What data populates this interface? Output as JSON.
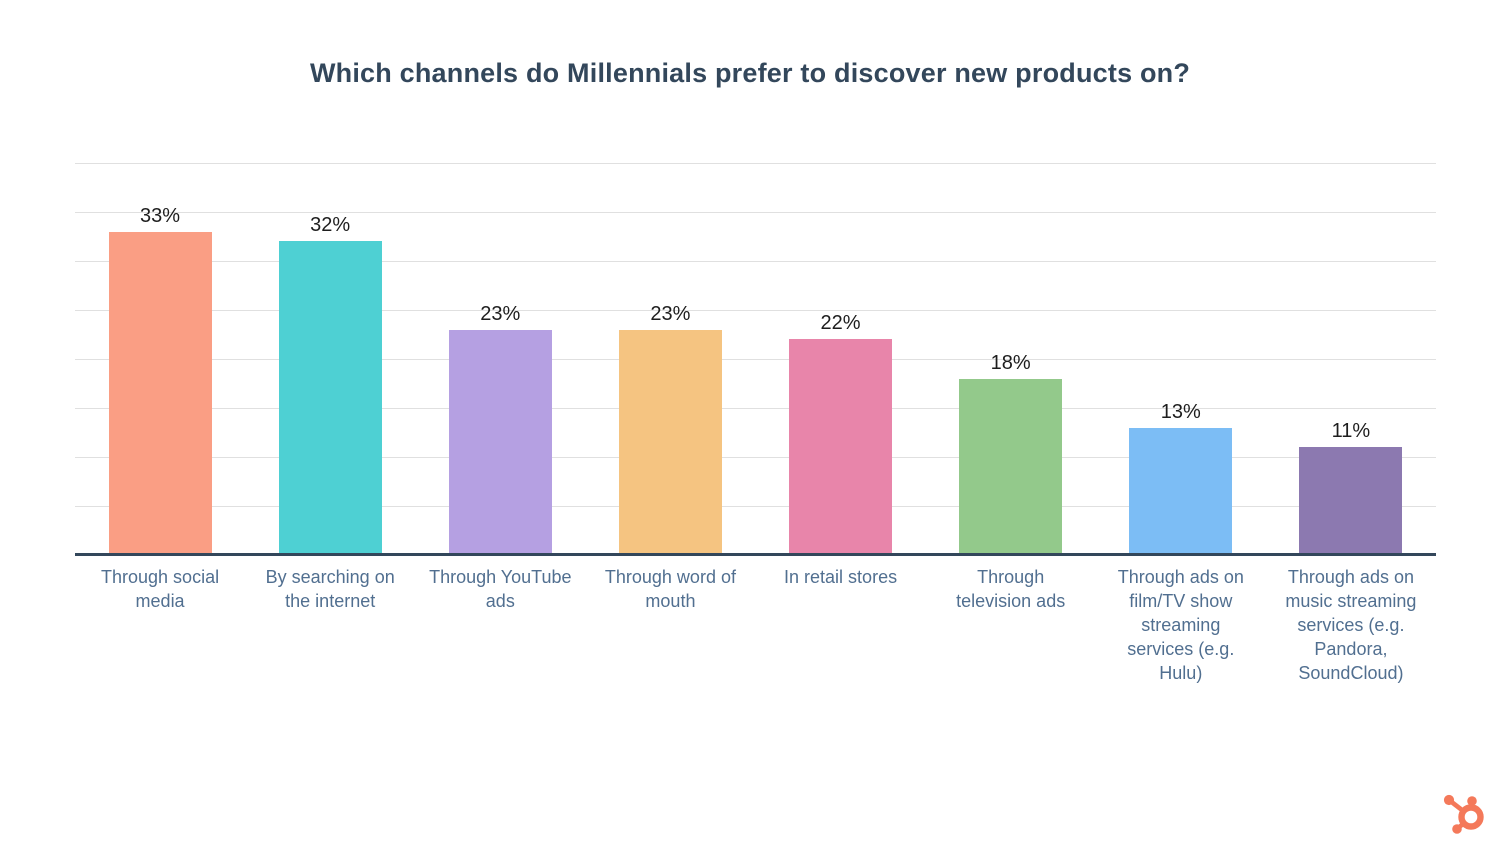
{
  "chart_data": {
    "type": "bar",
    "title": "Which channels do Millennials prefer to discover new products on?",
    "xlabel": "",
    "ylabel": "",
    "categories": [
      "Through social media",
      "By searching on the internet",
      "Through YouTube ads",
      "Through word of mouth",
      "In retail stores",
      "Through television ads",
      "Through ads on film/TV show streaming services (e.g. Hulu)",
      "Through ads on music streaming services (e.g. Pandora, SoundCloud)"
    ],
    "category_lines": [
      "Through social\nmedia",
      "By searching on\nthe internet",
      "Through YouTube\nads",
      "Through word of\nmouth",
      "In retail stores",
      "Through\ntelevision ads",
      "Through ads on\nfilm/TV show\nstreaming\nservices (e.g.\nHulu)",
      "Through ads on\nmusic streaming\nservices (e.g.\nPandora,\nSoundCloud)"
    ],
    "values": [
      33,
      32,
      23,
      23,
      22,
      18,
      13,
      11
    ],
    "value_labels": [
      "33%",
      "32%",
      "23%",
      "23%",
      "22%",
      "18%",
      "13%",
      "11%"
    ],
    "bar_colors": [
      "#FA9E84",
      "#4ED0D3",
      "#B5A0E2",
      "#F5C481",
      "#E885AA",
      "#93C98B",
      "#7CBDF5",
      "#8C79B0"
    ],
    "ylim": [
      0,
      40
    ],
    "gridline_step": 5,
    "grid": true,
    "legend": "none"
  },
  "branding": {
    "logo_icon": "hubspot-sprocket-logo",
    "logo_color": "#F4795A"
  },
  "colors": {
    "background": "#FFFFFF",
    "title_text": "#33475B",
    "axis_label_text": "#516F90",
    "value_label_text": "#1E1E1E",
    "axis_line": "#33475B",
    "gridline": "#E0E0E0"
  }
}
